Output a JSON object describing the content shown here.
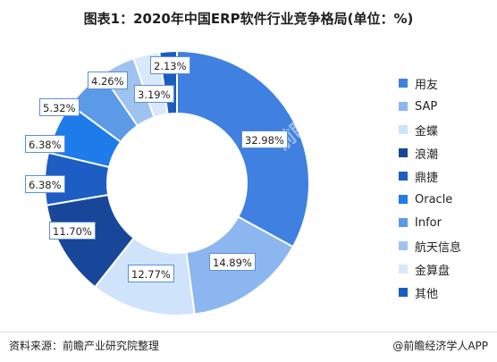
{
  "title": "图表1：2020年中国ERP软件行业竞争格局(单位：%)",
  "source": "资料来源：前瞻产业研究院整理",
  "credit": "@前瞻经济学人APP",
  "watermark": "前瞻产业研究院",
  "chart_data": {
    "type": "pie",
    "donut": true,
    "title": "图表1：2020年中国ERP软件行业竞争格局(单位：%)",
    "legend_position": "right",
    "slices": [
      {
        "name": "用友",
        "value": 32.98,
        "label": "32.98%",
        "color": "#3f80e0"
      },
      {
        "name": "SAP",
        "value": 14.89,
        "label": "14.89%",
        "color": "#8cb6ef"
      },
      {
        "name": "金蝶",
        "value": 12.77,
        "label": "12.77%",
        "color": "#cfe3fb"
      },
      {
        "name": "浪潮",
        "value": 11.7,
        "label": "11.70%",
        "color": "#18479a"
      },
      {
        "name": "鼎捷",
        "value": 6.38,
        "label": "6.38%",
        "color": "#1d5dc4"
      },
      {
        "name": "Oracle",
        "value": 6.38,
        "label": "6.38%",
        "color": "#1e7bea"
      },
      {
        "name": "Infor",
        "value": 5.32,
        "label": "5.32%",
        "color": "#5b9ae6"
      },
      {
        "name": "航天信息",
        "value": 4.26,
        "label": "4.26%",
        "color": "#9ec3f0"
      },
      {
        "name": "金算盘",
        "value": 3.19,
        "label": "3.19%",
        "color": "#d9e8fa"
      },
      {
        "name": "其他",
        "value": 2.13,
        "label": "2.13%",
        "color": "#1b5cbf"
      }
    ]
  }
}
